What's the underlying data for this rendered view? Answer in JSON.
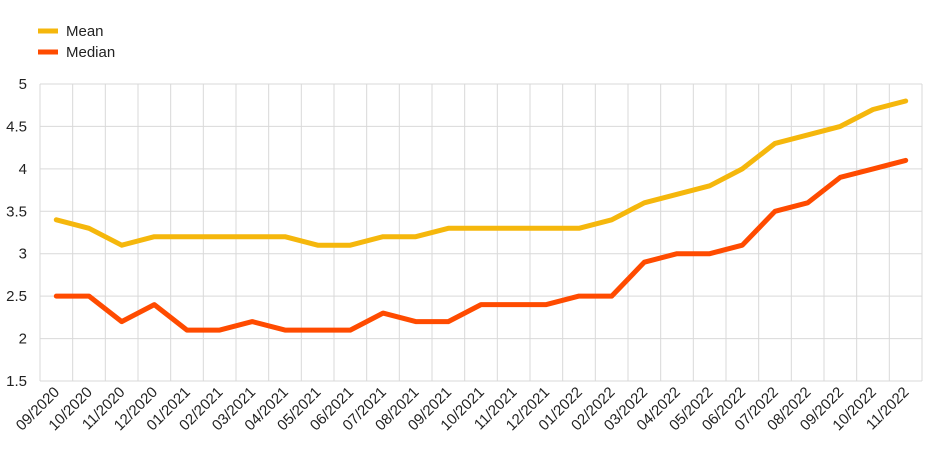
{
  "chart_data": {
    "type": "line",
    "title": "",
    "xlabel": "",
    "ylabel": "",
    "categories": [
      "09/2020",
      "10/2020",
      "11/2020",
      "12/2020",
      "01/2021",
      "02/2021",
      "03/2021",
      "04/2021",
      "05/2021",
      "06/2021",
      "07/2021",
      "08/2021",
      "09/2021",
      "10/2021",
      "11/2021",
      "12/2021",
      "01/2022",
      "02/2022",
      "03/2022",
      "04/2022",
      "05/2022",
      "06/2022",
      "07/2022",
      "08/2022",
      "09/2022",
      "10/2022",
      "11/2022"
    ],
    "ylim": [
      1.5,
      5
    ],
    "yticks": [
      "1.5",
      "2",
      "2.5",
      "3",
      "3.5",
      "4",
      "4.5",
      "5"
    ],
    "grid": true,
    "legend_position": "top-left",
    "series": [
      {
        "name": "Mean",
        "color": "#f5b70c",
        "values": [
          3.4,
          3.3,
          3.1,
          3.2,
          3.2,
          3.2,
          3.2,
          3.2,
          3.1,
          3.1,
          3.2,
          3.2,
          3.3,
          3.3,
          3.3,
          3.3,
          3.3,
          3.4,
          3.6,
          3.7,
          3.8,
          4.0,
          4.3,
          4.4,
          4.5,
          4.7,
          4.8
        ]
      },
      {
        "name": "Median",
        "color": "#ff4b00",
        "values": [
          2.5,
          2.5,
          2.2,
          2.4,
          2.1,
          2.1,
          2.2,
          2.1,
          2.1,
          2.1,
          2.3,
          2.2,
          2.2,
          2.4,
          2.4,
          2.4,
          2.5,
          2.5,
          2.9,
          3.0,
          3.0,
          3.1,
          3.5,
          3.6,
          3.9,
          4.0,
          4.1
        ]
      }
    ]
  }
}
